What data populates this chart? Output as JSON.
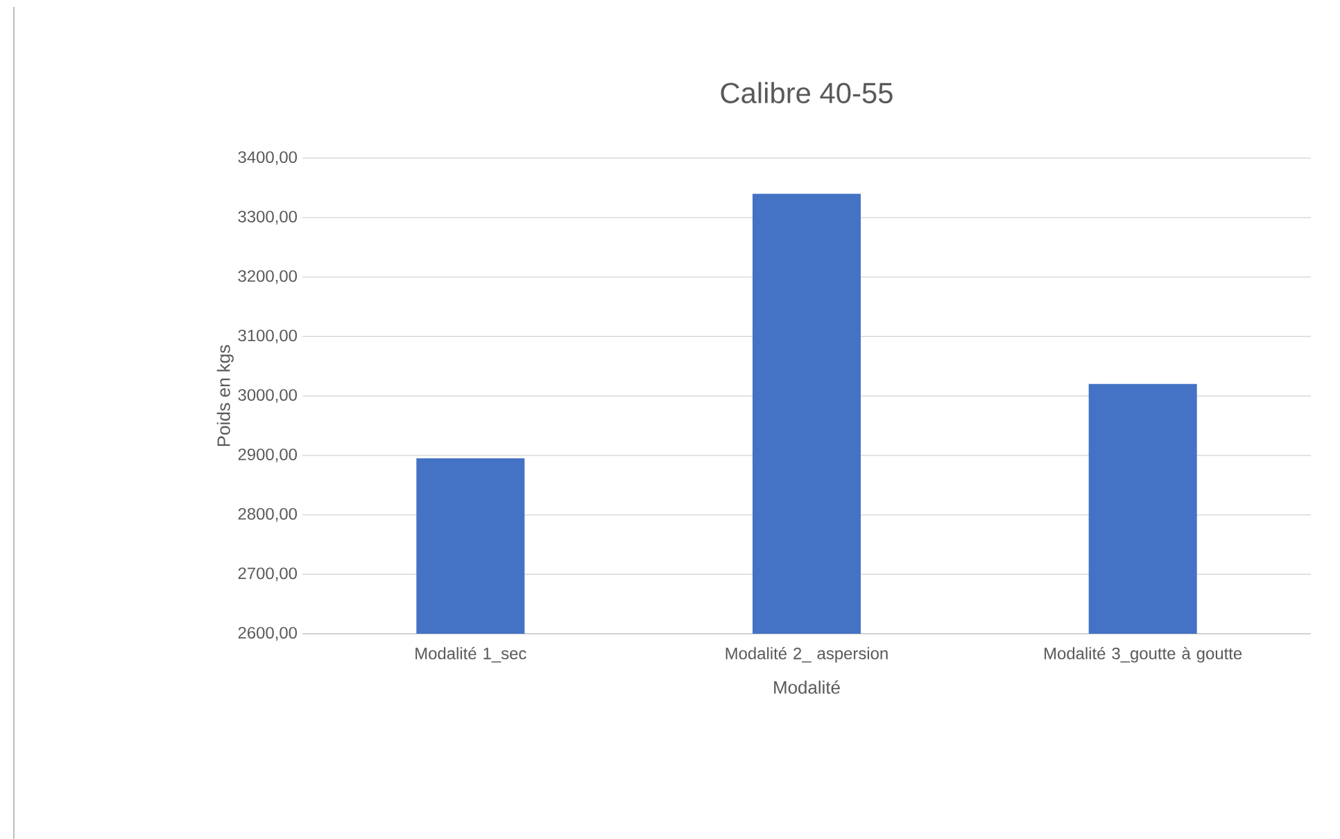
{
  "chart_data": {
    "type": "bar",
    "title": "Calibre 40-55",
    "xlabel": "Modalité",
    "ylabel": "Poids en kgs",
    "categories": [
      "Modalité 1_sec",
      "Modalité 2_ aspersion",
      "Modalité 3_goutte à goutte"
    ],
    "values": [
      2895,
      3340,
      3020
    ],
    "color": "#4472c4",
    "ylim": [
      2600,
      3400
    ],
    "yticks": [
      {
        "value": 2600,
        "label": "2600,00"
      },
      {
        "value": 2700,
        "label": "2700,00"
      },
      {
        "value": 2800,
        "label": "2800,00"
      },
      {
        "value": 2900,
        "label": "2900,00"
      },
      {
        "value": 3000,
        "label": "3000,00"
      },
      {
        "value": 3100,
        "label": "3100,00"
      },
      {
        "value": 3200,
        "label": "3200,00"
      },
      {
        "value": 3300,
        "label": "3300,00"
      },
      {
        "value": 3400,
        "label": "3400,00"
      }
    ],
    "grid": "y"
  }
}
